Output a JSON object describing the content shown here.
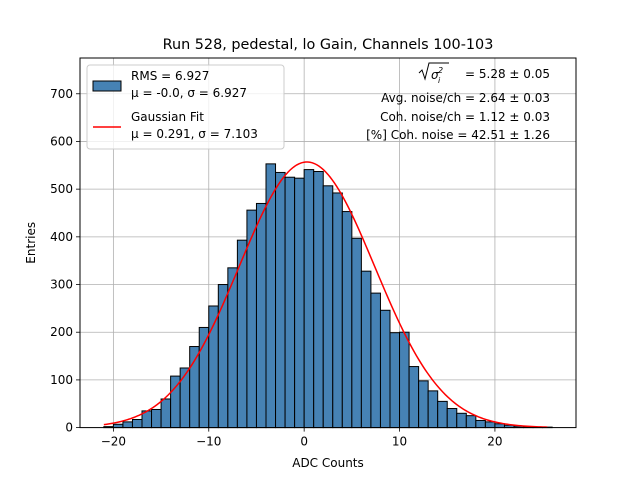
{
  "chart_data": {
    "type": "bar",
    "title": "Run 528, pedestal, lo Gain, Channels 100-103",
    "xlabel": "ADC Counts",
    "ylabel": "Entries",
    "xlim": [
      -23.5,
      28.5
    ],
    "ylim": [
      0,
      775
    ],
    "xticks": [
      -20,
      -10,
      0,
      10,
      20
    ],
    "xtick_labels": [
      "−20",
      "−10",
      "0",
      "10",
      "20"
    ],
    "yticks": [
      0,
      100,
      200,
      300,
      400,
      500,
      600,
      700
    ],
    "ytick_labels": [
      "0",
      "100",
      "200",
      "300",
      "400",
      "500",
      "600",
      "700"
    ],
    "grid": true,
    "legend_position": "upper-left",
    "histogram": {
      "name_line1": "RMS = 6.927",
      "name_line2": "μ = -0.0, σ = 6.927",
      "bin_start": -21,
      "bin_width": 1,
      "counts": [
        2,
        7,
        12,
        17,
        35,
        38,
        60,
        108,
        125,
        170,
        210,
        255,
        300,
        335,
        393,
        456,
        470,
        553,
        535,
        525,
        523,
        541,
        537,
        507,
        492,
        453,
        397,
        328,
        282,
        246,
        199,
        200,
        128,
        98,
        77,
        55,
        40,
        30,
        25,
        15,
        12,
        8,
        5,
        3,
        2,
        1,
        1
      ],
      "fill_color": "#4682b4",
      "edge_color": "#000000"
    },
    "fit": {
      "name_line1": "Gaussian Fit",
      "name_line2": "μ = 0.291, σ = 7.103",
      "mu": 0.291,
      "sigma": 7.103,
      "amplitude": 557,
      "x_range": [
        -21,
        25.5
      ],
      "color": "#ff0000"
    },
    "annotations": {
      "line1_value": " = 5.28 ± 0.05",
      "line2": "Avg. noise/ch = 2.64 ± 0.03",
      "line3": "Coh. noise/ch = 1.12 ± 0.03",
      "line4": "[%] Coh. noise = 42.51 ± 1.26"
    }
  }
}
